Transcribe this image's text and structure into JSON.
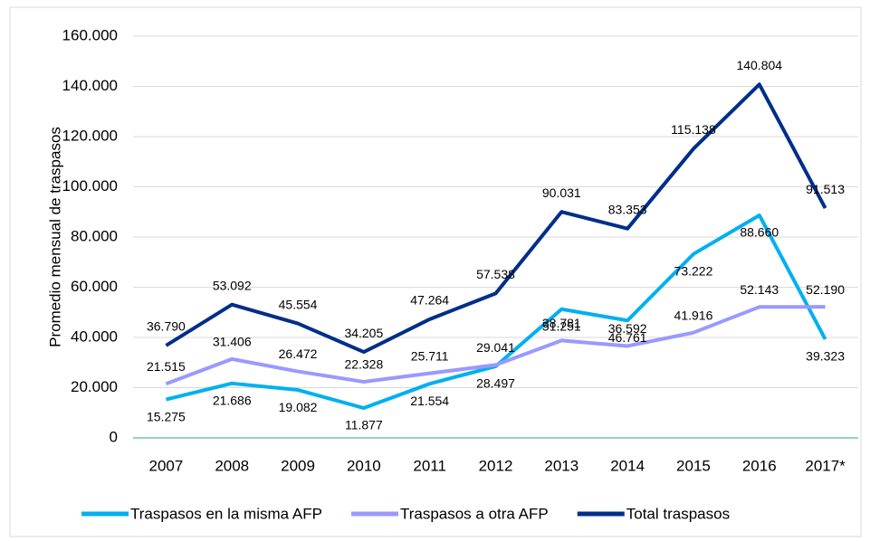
{
  "chart_data": {
    "type": "line",
    "y_label": "Promedio mensual de traspasos",
    "categories": [
      "2007",
      "2008",
      "2009",
      "2010",
      "2011",
      "2012",
      "2013",
      "2014",
      "2015",
      "2016",
      "2017*"
    ],
    "series": [
      {
        "name": "Traspasos en la misma AFP",
        "color": "#00b0f0",
        "values": [
          15275,
          21686,
          19082,
          11877,
          21554,
          28497,
          51251,
          46761,
          73222,
          88660,
          39323
        ],
        "value_labels": [
          "15.275",
          "21.686",
          "19.082",
          "11.877",
          "21.554",
          "28.497",
          "51.251",
          "46.761",
          "73.222",
          "88.660",
          "39.323"
        ]
      },
      {
        "name": "Traspasos a otra AFP",
        "color": "#9999ff",
        "values": [
          21515,
          31406,
          26472,
          22328,
          25711,
          29041,
          38781,
          36592,
          41916,
          52143,
          52190
        ],
        "value_labels": [
          "21.515",
          "31.406",
          "26.472",
          "22.328",
          "25.711",
          "29.041",
          "38.781",
          "36.592",
          "41.916",
          "52.143",
          "52.190"
        ]
      },
      {
        "name": "Total traspasos",
        "color": "#002e8a",
        "values": [
          36790,
          53092,
          45554,
          34205,
          47264,
          57538,
          90031,
          83353,
          115138,
          140804,
          91513
        ],
        "value_labels": [
          "36.790",
          "53.092",
          "45.554",
          "34.205",
          "47.264",
          "57.538",
          "90.031",
          "83.353",
          "115.138",
          "140.804",
          "91.513"
        ]
      }
    ],
    "ylim": [
      0,
      160000
    ],
    "yticks": [
      0,
      {
        "value": 20000,
        "label": "20.000"
      },
      {
        "value": 40000,
        "label": "40.000"
      },
      {
        "value": 60000,
        "label": "60.000"
      },
      {
        "value": 80000,
        "label": "80.000"
      },
      {
        "value": 100000,
        "label": "100.000"
      },
      {
        "value": 120000,
        "label": "120.000"
      },
      {
        "value": 140000,
        "label": "140.000"
      },
      {
        "value": 160000,
        "label": "160.000"
      }
    ],
    "grid": true,
    "legend": "bottom"
  }
}
